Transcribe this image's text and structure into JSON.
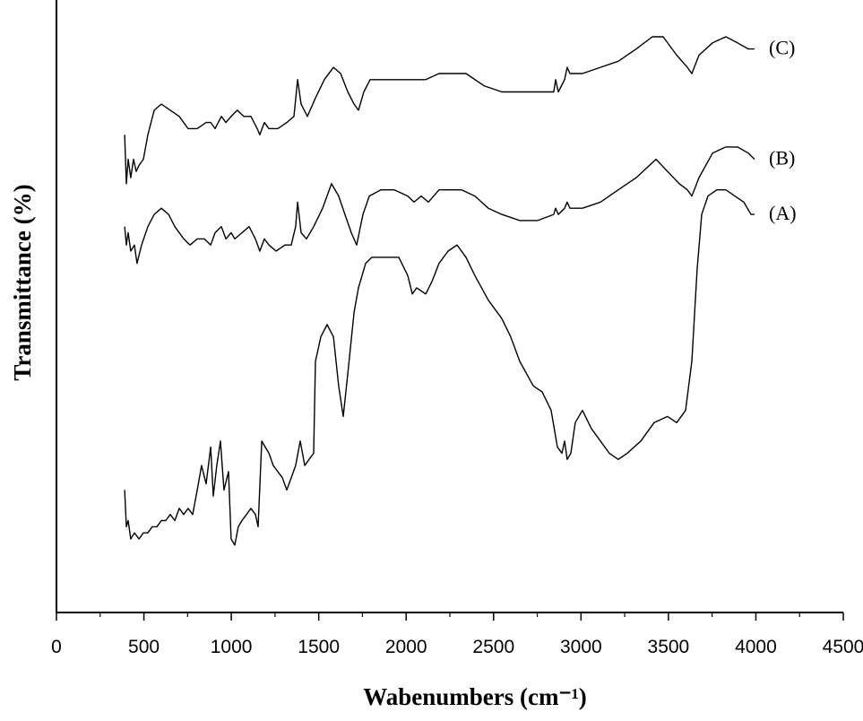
{
  "chart_data": {
    "type": "line",
    "x_label": "Wabenumbers (cm⁻¹)",
    "y_label": "Transmittance (%)",
    "xlim": [
      0,
      4500
    ],
    "ylim": [
      0,
      100
    ],
    "xticks": [
      0,
      500,
      1000,
      1500,
      2000,
      2500,
      3000,
      3500,
      4000,
      4500
    ],
    "xminorticks": [
      250,
      750,
      1250,
      1750,
      2250,
      2750,
      3250,
      3750,
      4250
    ],
    "series": [
      {
        "name": "(A)",
        "color": "#000000",
        "x": [
          390,
          400,
          410,
          425,
          446,
          472,
          497,
          523,
          548,
          574,
          600,
          625,
          651,
          677,
          702,
          728,
          753,
          779,
          805,
          830,
          856,
          882,
          897,
          917,
          938,
          958,
          984,
          999,
          1020,
          1040,
          1061,
          1087,
          1112,
          1138,
          1153,
          1174,
          1194,
          1215,
          1240,
          1266,
          1292,
          1317,
          1343,
          1368,
          1394,
          1420,
          1445,
          1471,
          1481,
          1512,
          1548,
          1584,
          1614,
          1640,
          1666,
          1702,
          1727,
          1768,
          1804,
          1855,
          1907,
          1958,
          2009,
          2035,
          2060,
          2112,
          2147,
          2188,
          2240,
          2291,
          2342,
          2393,
          2470,
          2547,
          2598,
          2650,
          2727,
          2778,
          2829,
          2865,
          2891,
          2906,
          2921,
          2942,
          2967,
          3008,
          3060,
          3111,
          3162,
          3213,
          3265,
          3342,
          3418,
          3495,
          3547,
          3598,
          3634,
          3664,
          3690,
          3726,
          3777,
          3828,
          3880,
          3931,
          3972,
          3992
        ],
        "values": [
          20,
          14,
          15,
          12,
          13,
          12,
          13,
          13,
          14,
          14,
          15,
          15,
          16,
          15,
          17,
          16,
          17,
          16,
          20,
          24,
          21,
          27,
          19,
          24,
          28,
          20,
          23,
          12,
          11,
          14,
          15,
          16,
          17,
          16,
          14,
          28,
          27,
          26,
          24,
          23,
          22,
          20,
          22,
          24,
          28,
          24,
          25,
          26,
          41,
          45,
          47,
          45,
          37,
          32,
          39,
          49,
          53,
          57,
          58,
          58,
          58,
          58,
          55,
          52,
          53,
          52,
          54,
          57,
          59,
          60,
          58,
          55,
          51,
          48,
          45,
          41,
          37,
          36,
          33,
          27,
          26,
          28,
          25,
          26,
          31,
          33,
          30,
          28,
          26,
          25,
          26,
          28,
          31,
          32,
          31,
          33,
          41,
          56,
          65,
          68,
          69,
          69,
          68,
          67,
          65,
          65
        ]
      },
      {
        "name": "(B)",
        "color": "#000000",
        "x": [
          390,
          400,
          410,
          425,
          446,
          461,
          487,
          523,
          559,
          600,
          641,
          677,
          728,
          764,
          805,
          846,
          882,
          907,
          943,
          969,
          999,
          1020,
          1061,
          1102,
          1138,
          1163,
          1189,
          1215,
          1256,
          1307,
          1343,
          1368,
          1379,
          1399,
          1430,
          1471,
          1522,
          1573,
          1614,
          1650,
          1686,
          1717,
          1753,
          1789,
          1855,
          1932,
          2009,
          2045,
          2086,
          2127,
          2188,
          2265,
          2317,
          2393,
          2470,
          2547,
          2650,
          2752,
          2844,
          2855,
          2870,
          2906,
          2921,
          2937,
          3008,
          3111,
          3213,
          3316,
          3429,
          3495,
          3562,
          3608,
          3634,
          3675,
          3752,
          3828,
          3895,
          3957,
          3992
        ],
        "values": [
          63,
          60,
          62,
          59,
          60,
          57,
          60,
          63,
          65,
          66,
          65,
          63,
          61,
          60,
          61,
          61,
          60,
          62,
          63,
          61,
          62,
          61,
          62,
          63,
          61,
          59,
          61,
          60,
          59,
          60,
          60,
          63,
          67,
          62,
          61,
          63,
          66,
          70,
          68,
          65,
          62,
          60,
          65,
          68,
          69,
          69,
          68,
          67,
          68,
          67,
          69,
          69,
          69,
          68,
          66,
          65,
          64,
          64,
          65,
          66,
          65,
          66,
          67,
          66,
          66,
          67,
          69,
          71,
          74,
          72,
          70,
          69,
          68,
          71,
          75,
          76,
          76,
          75,
          74
        ]
      },
      {
        "name": "(C)",
        "color": "#000000",
        "x": [
          390,
          400,
          410,
          425,
          441,
          456,
          472,
          497,
          523,
          559,
          600,
          651,
          702,
          753,
          805,
          856,
          882,
          907,
          943,
          969,
          999,
          1035,
          1071,
          1112,
          1148,
          1163,
          1189,
          1215,
          1266,
          1317,
          1358,
          1379,
          1399,
          1435,
          1481,
          1532,
          1584,
          1625,
          1666,
          1702,
          1727,
          1758,
          1794,
          1881,
          1983,
          2060,
          2112,
          2188,
          2265,
          2342,
          2445,
          2547,
          2650,
          2752,
          2844,
          2855,
          2870,
          2906,
          2921,
          2937,
          2952,
          3008,
          3111,
          3213,
          3316,
          3408,
          3470,
          3547,
          3608,
          3634,
          3675,
          3752,
          3828,
          3895,
          3957,
          3992
        ],
        "values": [
          78,
          70,
          74,
          71,
          74,
          72,
          73,
          74,
          78,
          82,
          83,
          82,
          81,
          79,
          79,
          80,
          80,
          79,
          81,
          80,
          81,
          82,
          81,
          81,
          79,
          78,
          80,
          79,
          79,
          80,
          81,
          87,
          83,
          81,
          84,
          87,
          89,
          88,
          85,
          83,
          82,
          85,
          87,
          87,
          87,
          87,
          87,
          88,
          88,
          88,
          86,
          85,
          85,
          85,
          85,
          87,
          85,
          87,
          89,
          88,
          88,
          88,
          89,
          90,
          92,
          94,
          94,
          91,
          89,
          88,
          91,
          93,
          94,
          93,
          92,
          92
        ]
      }
    ]
  }
}
